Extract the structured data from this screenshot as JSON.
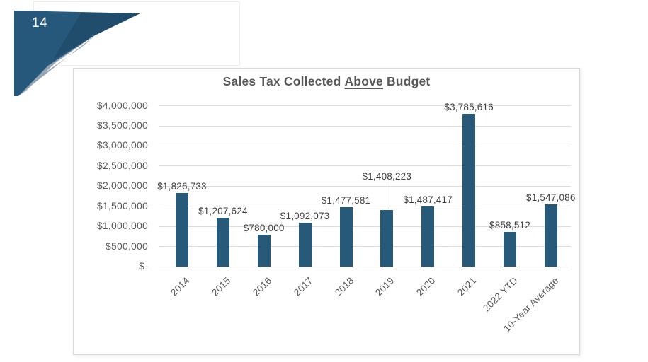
{
  "slide": {
    "page_number": "14"
  },
  "chart": {
    "title_parts": {
      "prefix": "Sales Tax Collected",
      "underline": "Above",
      "suffix": "Budget"
    }
  },
  "colors": {
    "bar": "#275978",
    "corner_blue": "#26587C",
    "corner_blue_dark": "#1C4A66",
    "corner_gray": "#98A6B2"
  },
  "chart_data": {
    "type": "bar",
    "title": "Sales Tax Collected Above Budget",
    "categories": [
      "2014",
      "2015",
      "2016",
      "2017",
      "2018",
      "2019",
      "2020",
      "2021",
      "2022 YTD",
      "10-Year Average"
    ],
    "values": [
      1826733,
      1207624,
      780000,
      1092073,
      1477581,
      1408223,
      1487417,
      3785616,
      858512,
      1547086
    ],
    "data_labels": [
      "$1,826,733",
      "$1,207,624",
      "$780,000",
      "$1,092,073",
      "$1,477,581",
      "$1,408,223",
      "$1,487,417",
      "$3,785,616",
      "$858,512",
      "$1,547,086"
    ],
    "y_ticks": [
      "$4,000,000",
      "$3,500,000",
      "$3,000,000",
      "$2,500,000",
      "$2,000,000",
      "$1,500,000",
      "$1,000,000",
      "$500,000",
      "$-"
    ],
    "ylim": [
      0,
      4000000
    ],
    "xlabel": "",
    "ylabel": "",
    "grid": true,
    "legend": "none",
    "bar_color": "#275978",
    "grid_color": "#dcdcdc",
    "raised_labels": [
      "2019"
    ]
  }
}
